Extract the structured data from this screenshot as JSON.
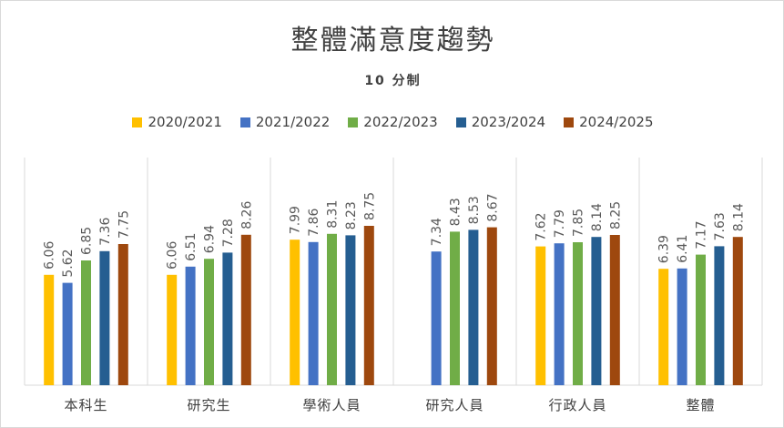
{
  "chart_data": {
    "type": "bar",
    "title": "整體滿意度趨勢",
    "subtitle": "10 分制",
    "categories": [
      "本科生",
      "研究生",
      "學術人員",
      "研究人員",
      "行政人員",
      "整體"
    ],
    "series": [
      {
        "name": "2020/2021",
        "color": "#ffc000",
        "values": [
          6.06,
          6.06,
          7.99,
          null,
          7.62,
          6.39
        ]
      },
      {
        "name": "2021/2022",
        "color": "#4472c4",
        "values": [
          5.62,
          6.51,
          7.86,
          7.34,
          7.79,
          6.41
        ]
      },
      {
        "name": "2022/2023",
        "color": "#70ad47",
        "values": [
          6.85,
          6.94,
          8.31,
          8.43,
          7.85,
          7.17
        ]
      },
      {
        "name": "2023/2024",
        "color": "#255e91",
        "values": [
          7.36,
          7.28,
          8.23,
          8.53,
          8.14,
          7.63
        ]
      },
      {
        "name": "2024/2025",
        "color": "#9e480e",
        "values": [
          7.75,
          8.26,
          8.75,
          8.67,
          8.25,
          8.14
        ]
      }
    ],
    "ylim": [
      0,
      12.5
    ],
    "grid": false,
    "legend": "top-center"
  }
}
